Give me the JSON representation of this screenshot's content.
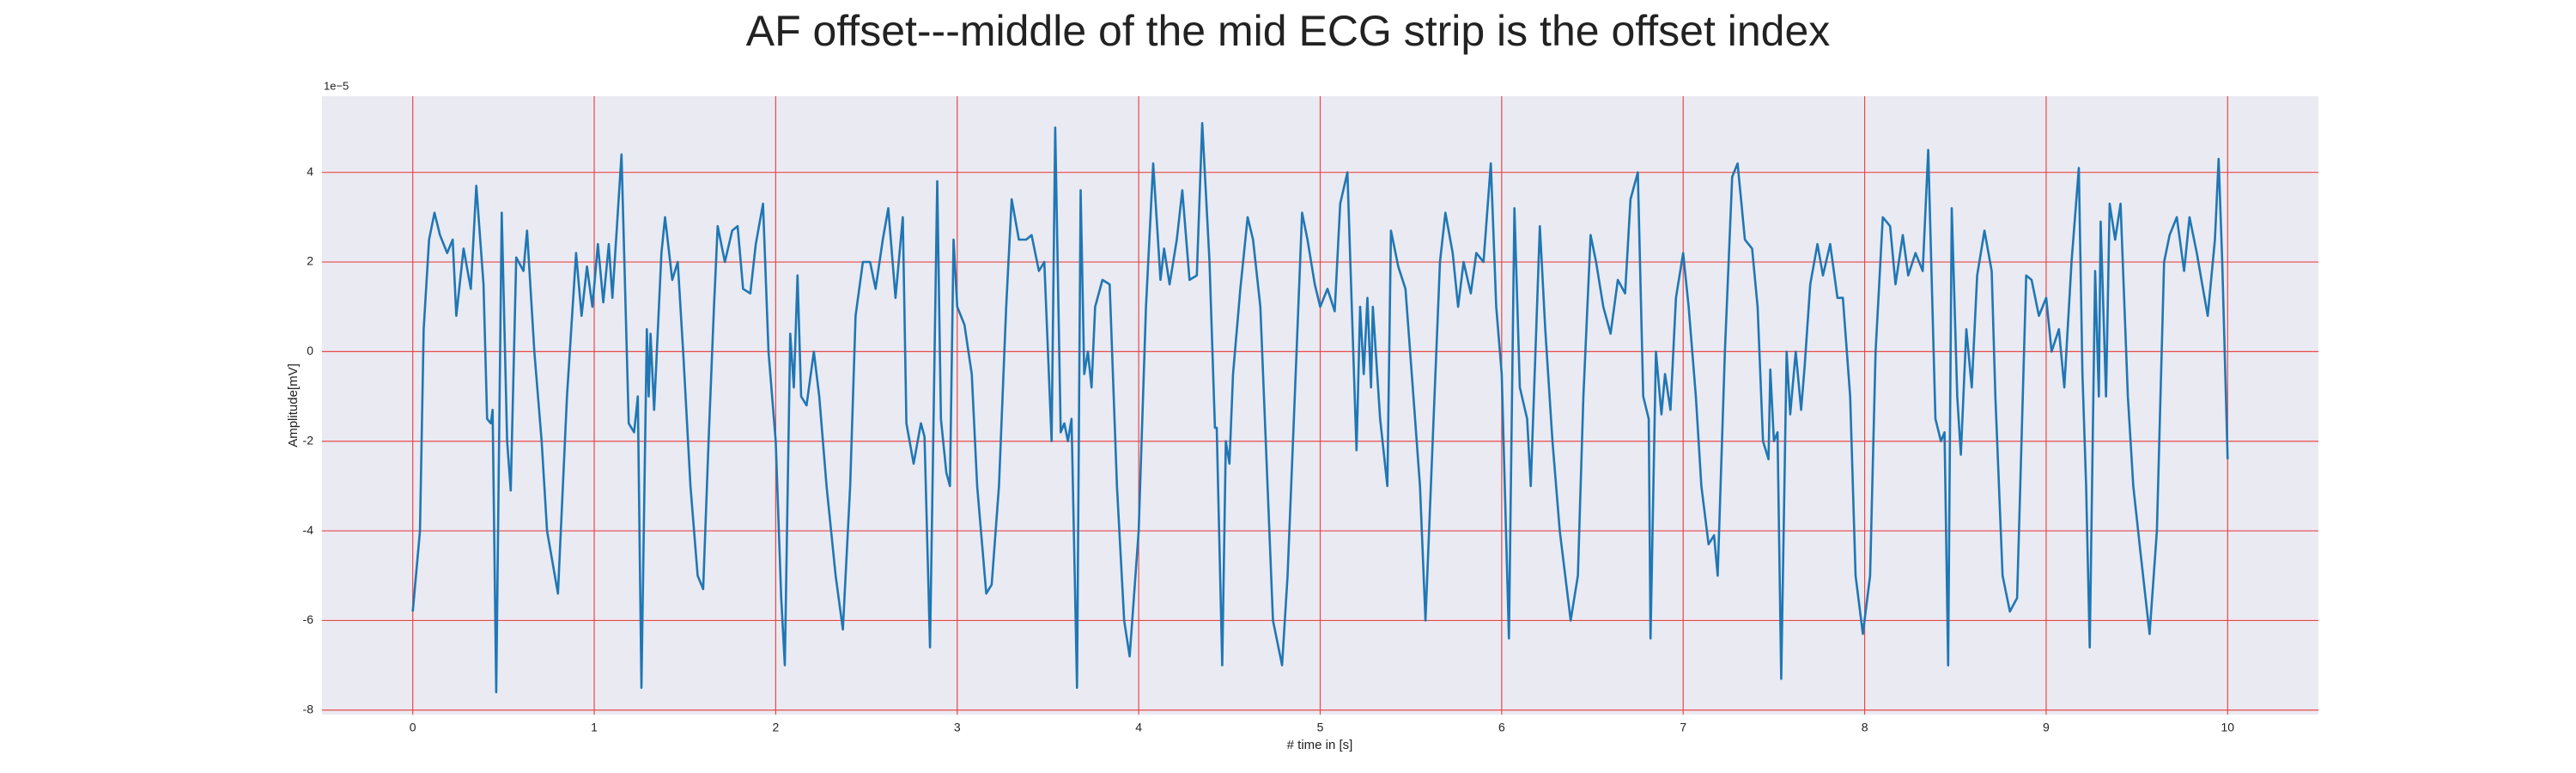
{
  "chart_data": {
    "type": "line",
    "title": "AF offset---middle of the mid ECG strip is the offset index",
    "xlabel": "# time in [s]",
    "ylabel": "Amplitude[mV]",
    "offset_label": "1e−5",
    "color": "#1f77b4",
    "grid": true,
    "grid_color": "#e8494a",
    "xlim": [
      -0.5,
      10.5
    ],
    "ylim": [
      -8.1,
      5.7
    ],
    "xticks": [
      0,
      1,
      2,
      3,
      4,
      5,
      6,
      7,
      8,
      9,
      10
    ],
    "yticks": [
      -8,
      -6,
      -4,
      -2,
      0,
      2,
      4
    ],
    "x": [
      0.0,
      0.04,
      0.06,
      0.09,
      0.12,
      0.15,
      0.19,
      0.22,
      0.24,
      0.28,
      0.32,
      0.35,
      0.39,
      0.41,
      0.43,
      0.44,
      0.46,
      0.49,
      0.52,
      0.54,
      0.57,
      0.61,
      0.63,
      0.67,
      0.71,
      0.74,
      0.8,
      0.85,
      0.9,
      0.93,
      0.96,
      0.99,
      1.02,
      1.05,
      1.08,
      1.1,
      1.15,
      1.19,
      1.22,
      1.24,
      1.26,
      1.29,
      1.3,
      1.31,
      1.33,
      1.37,
      1.39,
      1.43,
      1.46,
      1.49,
      1.53,
      1.57,
      1.6,
      1.63,
      1.66,
      1.68,
      1.72,
      1.76,
      1.79,
      1.82,
      1.86,
      1.89,
      1.93,
      1.96,
      2.0,
      2.03,
      2.05,
      2.08,
      2.1,
      2.12,
      2.14,
      2.17,
      2.21,
      2.24,
      2.28,
      2.33,
      2.37,
      2.41,
      2.44,
      2.48,
      2.52,
      2.55,
      2.59,
      2.62,
      2.66,
      2.7,
      2.72,
      2.76,
      2.8,
      2.82,
      2.85,
      2.89,
      2.91,
      2.94,
      2.96,
      2.98,
      3.0,
      3.04,
      3.08,
      3.11,
      3.16,
      3.19,
      3.23,
      3.27,
      3.3,
      3.34,
      3.38,
      3.41,
      3.45,
      3.48,
      3.52,
      3.54,
      3.57,
      3.59,
      3.61,
      3.63,
      3.66,
      3.68,
      3.7,
      3.72,
      3.74,
      3.76,
      3.8,
      3.84,
      3.88,
      3.92,
      3.95,
      4.0,
      4.04,
      4.08,
      4.12,
      4.14,
      4.17,
      4.21,
      4.24,
      4.28,
      4.32,
      4.35,
      4.39,
      4.42,
      4.43,
      4.46,
      4.48,
      4.5,
      4.52,
      4.56,
      4.6,
      4.63,
      4.67,
      4.71,
      4.74,
      4.79,
      4.82,
      4.86,
      4.9,
      4.93,
      4.97,
      5.0,
      5.04,
      5.08,
      5.11,
      5.15,
      5.19,
      5.2,
      5.22,
      5.24,
      5.26,
      5.28,
      5.29,
      5.33,
      5.37,
      5.39,
      5.43,
      5.47,
      5.51,
      5.55,
      5.58,
      5.62,
      5.66,
      5.69,
      5.73,
      5.76,
      5.79,
      5.83,
      5.86,
      5.9,
      5.94,
      5.97,
      6.0,
      6.04,
      6.07,
      6.1,
      6.14,
      6.16,
      6.21,
      6.24,
      6.28,
      6.32,
      6.38,
      6.42,
      6.45,
      6.49,
      6.52,
      6.56,
      6.6,
      6.64,
      6.68,
      6.71,
      6.75,
      6.78,
      6.81,
      6.82,
      6.85,
      6.88,
      6.9,
      6.93,
      6.96,
      7.0,
      7.03,
      7.07,
      7.1,
      7.14,
      7.17,
      7.19,
      7.23,
      7.27,
      7.3,
      7.34,
      7.38,
      7.41,
      7.44,
      7.47,
      7.48,
      7.5,
      7.52,
      7.54,
      7.57,
      7.59,
      7.62,
      7.65,
      7.67,
      7.7,
      7.74,
      7.77,
      7.81,
      7.85,
      7.88,
      7.92,
      7.95,
      7.99,
      8.03,
      8.06,
      8.1,
      8.14,
      8.17,
      8.21,
      8.24,
      8.28,
      8.32,
      8.35,
      8.39,
      8.42,
      8.44,
      8.46,
      8.48,
      8.51,
      8.53,
      8.56,
      8.59,
      8.62,
      8.66,
      8.7,
      8.72,
      8.76,
      8.8,
      8.84,
      8.89,
      8.92,
      8.96,
      9.0,
      9.03,
      9.07,
      9.1,
      9.14,
      9.18,
      9.2,
      9.22,
      9.24,
      9.27,
      9.29,
      9.3,
      9.33,
      9.35,
      9.38,
      9.41,
      9.45,
      9.48,
      9.52,
      9.57,
      9.61,
      9.65,
      9.68,
      9.72,
      9.76,
      9.79,
      9.83,
      9.86,
      9.89,
      9.93,
      9.95,
      9.97,
      10.0
    ],
    "values": [
      -5.8,
      -4,
      0.5,
      2.5,
      3.1,
      2.6,
      2.2,
      2.5,
      0.8,
      2.3,
      1.4,
      3.7,
      1.5,
      -1.5,
      -1.6,
      -1.3,
      -7.6,
      3.1,
      -2,
      -3.1,
      2.1,
      1.8,
      2.7,
      0,
      -2,
      -4,
      -5.4,
      -1,
      2.2,
      0.8,
      1.9,
      1.0,
      2.4,
      1.1,
      2.4,
      1.2,
      4.4,
      -1.6,
      -1.8,
      -1,
      -7.5,
      0.5,
      -1,
      0.4,
      -1.3,
      2.2,
      3.0,
      1.6,
      2.0,
      0,
      -3,
      -5,
      -5.3,
      -2,
      1,
      2.8,
      2.0,
      2.7,
      2.8,
      1.4,
      1.3,
      2.4,
      3.3,
      0,
      -2,
      -5.5,
      -7,
      0.4,
      -0.8,
      1.7,
      -1,
      -1.2,
      0,
      -1,
      -3,
      -5,
      -6.2,
      -3,
      0.8,
      2,
      2.0,
      1.4,
      2.5,
      3.2,
      1.2,
      3.0,
      -1.6,
      -2.5,
      -1.6,
      -1.9,
      -6.6,
      3.8,
      -1.5,
      -2.7,
      -3,
      2.5,
      1.0,
      0.6,
      -0.5,
      -3,
      -5.4,
      -5.2,
      -3,
      1,
      3.4,
      2.5,
      2.5,
      2.6,
      1.8,
      2.0,
      -2,
      5.0,
      -1.8,
      -1.6,
      -2.0,
      -1.5,
      -7.5,
      3.6,
      -0.5,
      0,
      -0.8,
      1.0,
      1.6,
      1.5,
      -3,
      -6,
      -6.8,
      -4,
      1,
      4.2,
      1.6,
      2.3,
      1.5,
      2.5,
      3.6,
      1.6,
      1.7,
      5.1,
      2,
      -1.7,
      -1.7,
      -7,
      -2,
      -2.5,
      -0.5,
      1.4,
      3.0,
      2.5,
      1,
      -3,
      -6,
      -7.0,
      -5,
      -1,
      3.1,
      2.5,
      1.5,
      1.0,
      1.4,
      0.9,
      3.3,
      4.0,
      -1,
      -2.2,
      1.0,
      -0.5,
      1.2,
      -0.8,
      1.0,
      -1.5,
      -3,
      2.7,
      1.9,
      1.4,
      -0.8,
      -3,
      -6,
      -2,
      2.0,
      3.1,
      2.2,
      1.0,
      2.0,
      1.3,
      2.2,
      2.0,
      4.2,
      1.0,
      -0.5,
      -6.4,
      3.2,
      -0.8,
      -1.5,
      -3,
      2.8,
      0.5,
      -2,
      -4,
      -6,
      -5,
      -1,
      2.6,
      2.0,
      1.0,
      0.4,
      1.6,
      1.3,
      3.4,
      4.0,
      -1,
      -1.5,
      -6.4,
      0,
      -1.4,
      -0.5,
      -1.3,
      1.2,
      2.2,
      1.0,
      -1,
      -3,
      -4.3,
      -4.1,
      -5,
      0,
      3.9,
      4.2,
      2.5,
      2.3,
      1.0,
      -2,
      -2.4,
      -0.4,
      -2.0,
      -1.8,
      -7.3,
      0,
      -1.4,
      0,
      -1.3,
      -0.3,
      1.5,
      2.4,
      1.7,
      2.4,
      1.2,
      1.2,
      -1,
      -5,
      -6.3,
      -5,
      0,
      3.0,
      2.8,
      1.5,
      2.6,
      1.7,
      2.2,
      1.8,
      4.5,
      -1.5,
      -2,
      -1.8,
      -7,
      3.2,
      -1,
      -2.3,
      0.5,
      -0.8,
      1.7,
      2.7,
      1.8,
      -1,
      -5,
      -5.8,
      -5.5,
      1.7,
      1.6,
      0.8,
      1.2,
      0,
      0.5,
      -0.8,
      2.0,
      4.1,
      -0.5,
      -3,
      -6.6,
      1.8,
      -1,
      2.9,
      -1,
      3.3,
      2.5,
      3.3,
      -1,
      -3,
      -4.5,
      -6.3,
      -4,
      2.0,
      2.6,
      3.0,
      1.8,
      3.0,
      2.2,
      1.5,
      0.8,
      2.5,
      4.3,
      2,
      -2.4
    ]
  }
}
